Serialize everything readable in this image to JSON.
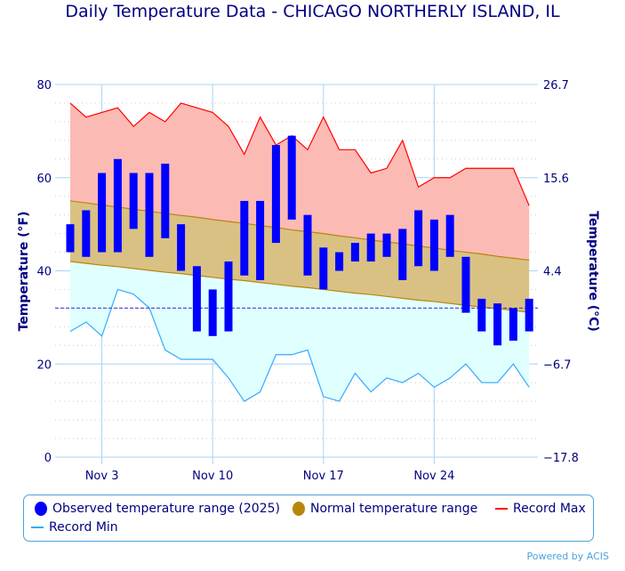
{
  "title": "Daily Temperature Data - CHICAGO NORTHERLY ISLAND, IL",
  "powered_by": "Powered by ACIS",
  "chart_data": {
    "type": "bar",
    "title": "Daily Temperature Data - CHICAGO NORTHERLY ISLAND, IL",
    "ylabel": "Temperature (°F)",
    "y2label": "Temperature (°C)",
    "ylim": [
      0,
      80
    ],
    "yticks": [
      "0",
      "20",
      "40",
      "60",
      "80"
    ],
    "y2ticks": [
      "−17.8",
      "−6.7",
      "4.4",
      "15.6",
      "26.7"
    ],
    "xticks": [
      {
        "day": 3,
        "label": "Nov 3"
      },
      {
        "day": 10,
        "label": "Nov 10"
      },
      {
        "day": 17,
        "label": "Nov 17"
      },
      {
        "day": 24,
        "label": "Nov 24"
      }
    ],
    "freezing_line": 32,
    "grid": true,
    "legend_placement": "bottom",
    "days": [
      1,
      2,
      3,
      4,
      5,
      6,
      7,
      8,
      9,
      10,
      11,
      12,
      13,
      14,
      15,
      16,
      17,
      18,
      19,
      20,
      21,
      22,
      23,
      24,
      25,
      26,
      27,
      28,
      29,
      30
    ],
    "series": [
      {
        "name": "Observed temperature range (2025)",
        "color": "#0000ff",
        "high": [
          50,
          53,
          61,
          64,
          61,
          61,
          63,
          50,
          41,
          36,
          42,
          55,
          55,
          67,
          69,
          52,
          45,
          44,
          46,
          48,
          48,
          49,
          53,
          51,
          52,
          43,
          34,
          33,
          32,
          34
        ],
        "low": [
          44,
          43,
          44,
          44,
          49,
          43,
          47,
          40,
          27,
          26,
          27,
          39,
          38,
          46,
          51,
          39,
          36,
          40,
          42,
          42,
          43,
          38,
          41,
          40,
          43,
          31,
          27,
          24,
          25,
          27
        ]
      },
      {
        "name": "Normal temperature range",
        "color": "#b8860b",
        "high": [
          55,
          54.6,
          54.1,
          53.7,
          53.2,
          52.8,
          52.3,
          51.9,
          51.5,
          51,
          50.6,
          50.2,
          49.7,
          49.3,
          48.8,
          48.4,
          48,
          47.5,
          47.1,
          46.6,
          46.2,
          45.8,
          45.3,
          44.9,
          44.4,
          44,
          43.6,
          43.1,
          42.7,
          42.3
        ],
        "low": [
          42,
          41.6,
          41.2,
          40.9,
          40.5,
          40.1,
          39.7,
          39.4,
          39,
          38.6,
          38.2,
          37.9,
          37.5,
          37.1,
          36.7,
          36.4,
          36,
          35.6,
          35.2,
          34.9,
          34.5,
          34.1,
          33.7,
          33.4,
          33,
          32.6,
          32.2,
          31.9,
          31.5,
          31.1
        ]
      },
      {
        "name": "Record Max",
        "color": "#ff0000",
        "values": [
          76,
          73,
          74,
          75,
          71,
          74,
          72,
          76,
          75,
          74,
          71,
          65,
          73,
          67,
          69,
          66,
          73,
          66,
          66,
          61,
          62,
          68,
          58,
          60,
          60,
          62,
          62,
          62,
          62,
          54
        ]
      },
      {
        "name": "Record Min",
        "color": "#33aaff",
        "values": [
          27,
          29,
          26,
          36,
          35,
          32,
          23,
          21,
          21,
          21,
          17,
          12,
          14,
          22,
          22,
          23,
          13,
          12,
          18,
          14,
          17,
          16,
          18,
          15,
          17,
          20,
          16,
          16,
          20,
          15
        ]
      }
    ]
  }
}
